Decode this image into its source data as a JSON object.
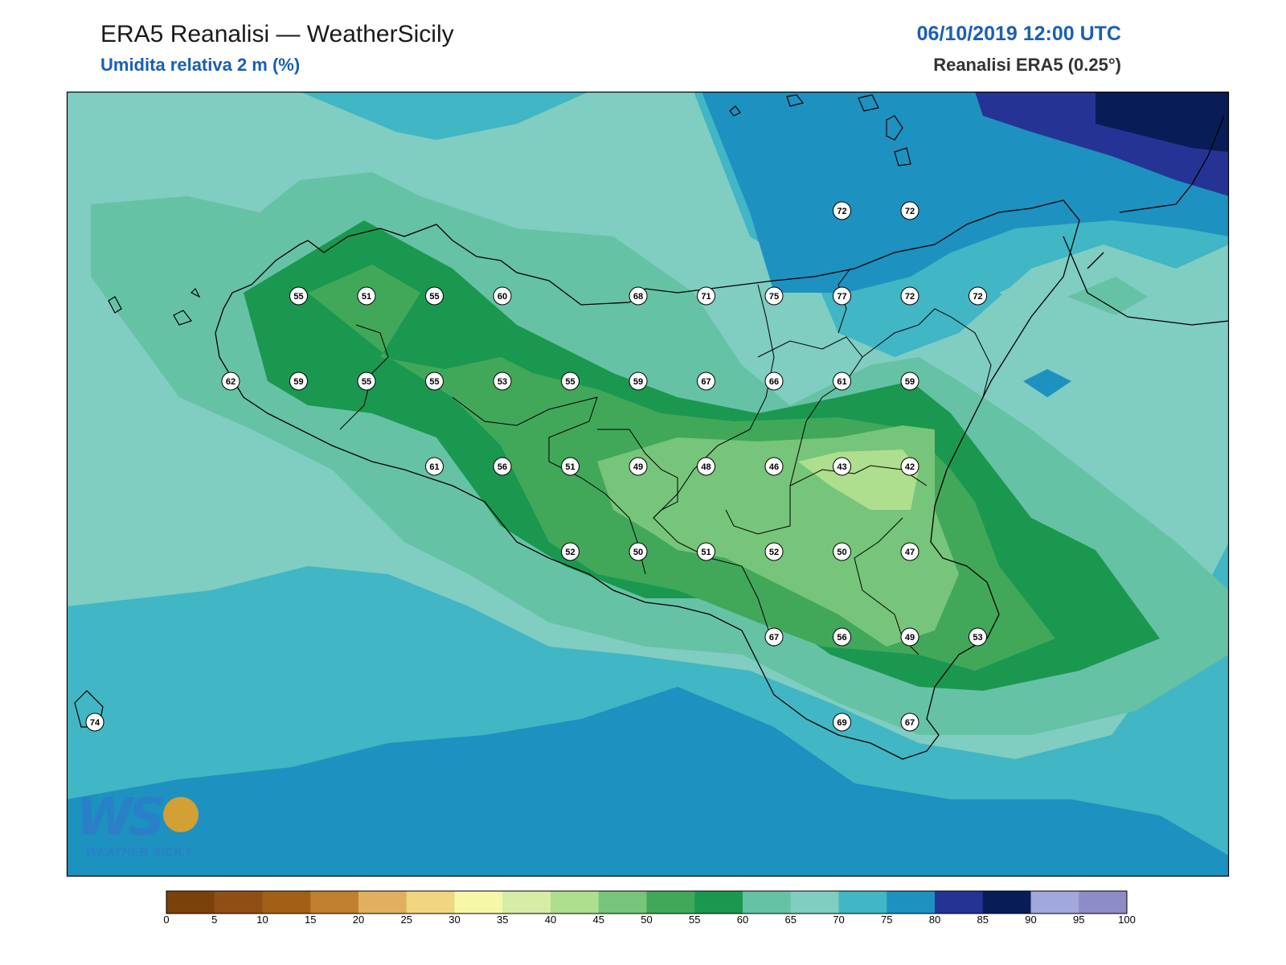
{
  "header": {
    "title": "ERA5 Reanalisi — WeatherSicily",
    "subtitle": "Umidita relativa 2 m (%)",
    "datetime": "06/10/2019 12:00 UTC",
    "source": "Reanalisi ERA5 (0.25°)"
  },
  "logo": {
    "text": "WEATHER SICILY",
    "monogram": "WS"
  },
  "colors": {
    "frame": "#000000",
    "coast": "#000000",
    "station_fill": "#ffffff"
  },
  "colorbar": {
    "ticks": [
      "0",
      "5",
      "10",
      "15",
      "20",
      "25",
      "30",
      "35",
      "40",
      "45",
      "50",
      "55",
      "60",
      "65",
      "70",
      "75",
      "80",
      "85",
      "90",
      "95",
      "100"
    ],
    "bins": [
      "#7a420a",
      "#8f4f14",
      "#a35f15",
      "#c08030",
      "#e0b060",
      "#f0d680",
      "#f7f7a8",
      "#d6eda8",
      "#addf8e",
      "#77c57a",
      "#41a85a",
      "#1a9850",
      "#66c2a5",
      "#80cdc1",
      "#41b6c4",
      "#1d91c0",
      "#253494",
      "#081d58",
      "#a0a8dc",
      "#8e8cc8"
    ]
  },
  "map_data": {
    "grid_cols": 16,
    "grid_rows": 8,
    "stations": [
      {
        "col": 11,
        "row": 0,
        "value": 72
      },
      {
        "col": 12,
        "row": 0,
        "value": 72
      },
      {
        "col": 3,
        "row": 1,
        "value": 55
      },
      {
        "col": 4,
        "row": 1,
        "value": 51
      },
      {
        "col": 5,
        "row": 1,
        "value": 55
      },
      {
        "col": 6,
        "row": 1,
        "value": 60
      },
      {
        "col": 8,
        "row": 1,
        "value": 68
      },
      {
        "col": 9,
        "row": 1,
        "value": 71
      },
      {
        "col": 10,
        "row": 1,
        "value": 75
      },
      {
        "col": 11,
        "row": 1,
        "value": 77
      },
      {
        "col": 12,
        "row": 1,
        "value": 72
      },
      {
        "col": 13,
        "row": 1,
        "value": 72
      },
      {
        "col": 2,
        "row": 2,
        "value": 62
      },
      {
        "col": 3,
        "row": 2,
        "value": 59
      },
      {
        "col": 4,
        "row": 2,
        "value": 55
      },
      {
        "col": 5,
        "row": 2,
        "value": 55
      },
      {
        "col": 6,
        "row": 2,
        "value": 53
      },
      {
        "col": 7,
        "row": 2,
        "value": 55
      },
      {
        "col": 8,
        "row": 2,
        "value": 59
      },
      {
        "col": 9,
        "row": 2,
        "value": 67
      },
      {
        "col": 10,
        "row": 2,
        "value": 66
      },
      {
        "col": 11,
        "row": 2,
        "value": 61
      },
      {
        "col": 12,
        "row": 2,
        "value": 59
      },
      {
        "col": 5,
        "row": 3,
        "value": 61
      },
      {
        "col": 6,
        "row": 3,
        "value": 56
      },
      {
        "col": 7,
        "row": 3,
        "value": 51
      },
      {
        "col": 8,
        "row": 3,
        "value": 49
      },
      {
        "col": 9,
        "row": 3,
        "value": 48
      },
      {
        "col": 10,
        "row": 3,
        "value": 46
      },
      {
        "col": 11,
        "row": 3,
        "value": 43
      },
      {
        "col": 12,
        "row": 3,
        "value": 42
      },
      {
        "col": 7,
        "row": 4,
        "value": 52
      },
      {
        "col": 8,
        "row": 4,
        "value": 50
      },
      {
        "col": 9,
        "row": 4,
        "value": 51
      },
      {
        "col": 10,
        "row": 4,
        "value": 52
      },
      {
        "col": 11,
        "row": 4,
        "value": 50
      },
      {
        "col": 12,
        "row": 4,
        "value": 47
      },
      {
        "col": 10,
        "row": 5,
        "value": 67
      },
      {
        "col": 11,
        "row": 5,
        "value": 56
      },
      {
        "col": 12,
        "row": 5,
        "value": 49
      },
      {
        "col": 13,
        "row": 5,
        "value": 53
      },
      {
        "col": 0,
        "row": 6,
        "value": 74
      },
      {
        "col": 11,
        "row": 6,
        "value": 69
      },
      {
        "col": 12,
        "row": 6,
        "value": 67
      }
    ]
  }
}
